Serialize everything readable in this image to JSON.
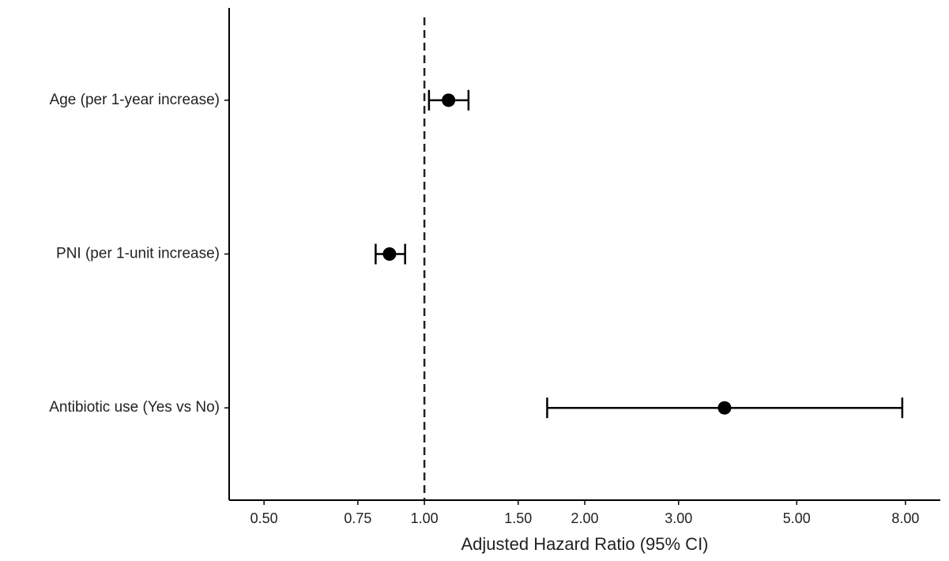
{
  "chart_data": {
    "type": "forest",
    "x_label": "Adjusted Hazard Ratio (95% CI)",
    "categories": [
      "Age (per 1-year increase)",
      "PNI (per 1-unit increase)",
      "Antibiotic use (Yes vs No)"
    ],
    "values": [
      1.11,
      0.86,
      3.66
    ],
    "lower": [
      1.02,
      0.81,
      1.7
    ],
    "upper": [
      1.21,
      0.92,
      7.89
    ],
    "color": "#000000",
    "x_log": true,
    "ref_line": 1,
    "xlim": [
      0.43,
      9.3
    ],
    "xticks": [
      {
        "value": 0.5,
        "label": "0.50"
      },
      {
        "value": 0.75,
        "label": "0.75"
      },
      {
        "value": 1,
        "label": "1.00"
      },
      {
        "value": 1.5,
        "label": "1.50"
      },
      {
        "value": 2,
        "label": "2.00"
      },
      {
        "value": 3,
        "label": "3.00"
      },
      {
        "value": 5,
        "label": "5.00"
      },
      {
        "value": 8,
        "label": "8.00"
      }
    ]
  }
}
